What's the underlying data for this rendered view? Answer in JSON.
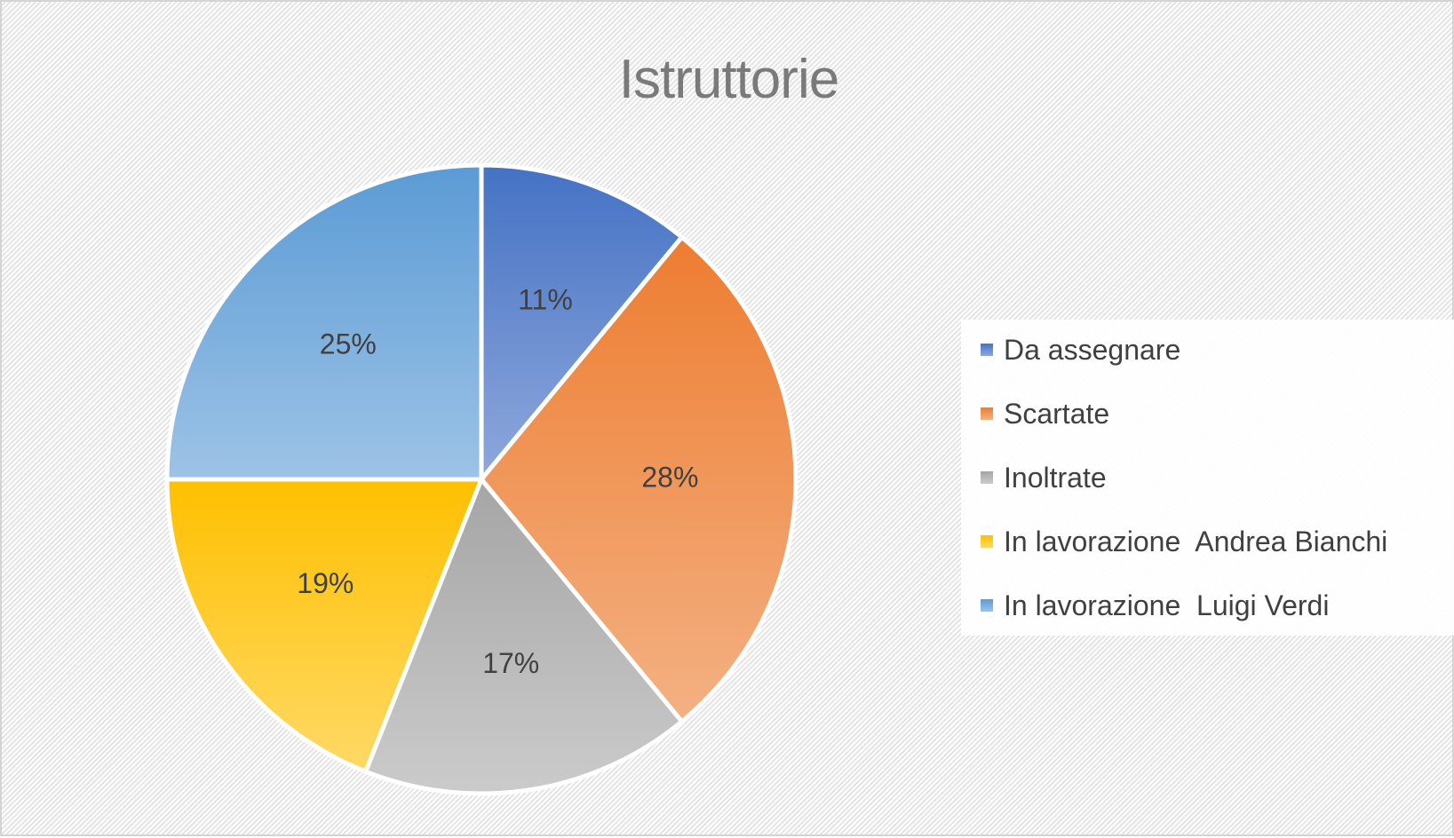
{
  "chart_data": {
    "type": "pie",
    "title": "Istruttorie",
    "legend_position": "right",
    "categories": [
      "Da assegnare",
      "Scartate",
      "Inoltrate",
      "In lavorazione  Andrea Bianchi",
      "In lavorazione  Luigi Verdi"
    ],
    "values": [
      11,
      28,
      17,
      19,
      25
    ],
    "labels": [
      "11%",
      "28%",
      "17%",
      "19%",
      "25%"
    ],
    "colors": [
      {
        "top": "#4472c4",
        "bottom": "#8fa8dc"
      },
      {
        "top": "#ed7d31",
        "bottom": "#f4b183"
      },
      {
        "top": "#a5a5a5",
        "bottom": "#cbcbcb"
      },
      {
        "top": "#ffc000",
        "bottom": "#ffd966"
      },
      {
        "top": "#5b9bd5",
        "bottom": "#9dc3e6"
      }
    ]
  }
}
